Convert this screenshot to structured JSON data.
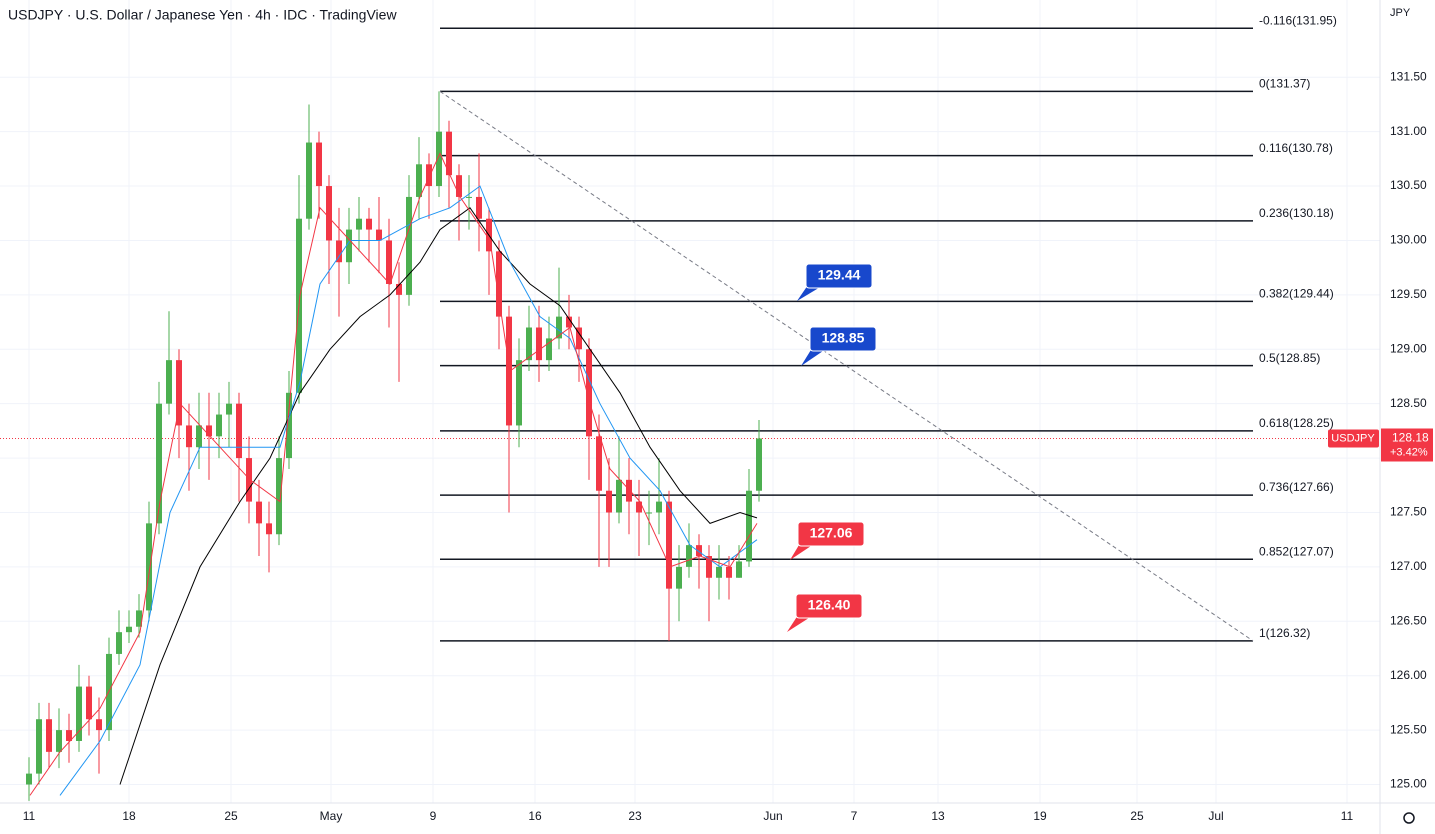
{
  "chart_data": {
    "type": "candlestick",
    "title": "USDJPY · U.S. Dollar / Japanese Yen · 4h · IDC · TradingView",
    "currency": "JPY",
    "up_color": "#4caf50",
    "down_color": "#f23645",
    "x": [
      0,
      3,
      6,
      9,
      12,
      15,
      18,
      21,
      24,
      27,
      30,
      33,
      36,
      39,
      42,
      45,
      48,
      51,
      54,
      57,
      60,
      63,
      66,
      69,
      72,
      75,
      78,
      81,
      84,
      87,
      90,
      93,
      96,
      99,
      102,
      105,
      108,
      111,
      114,
      117,
      120,
      123,
      126,
      129,
      132,
      135,
      138,
      141,
      144,
      147,
      150,
      153,
      156,
      159,
      162,
      165,
      168,
      171,
      174,
      177,
      180,
      183,
      186,
      189,
      192,
      195,
      198,
      201,
      204,
      207,
      210,
      213,
      216,
      219
    ],
    "open": [
      125.0,
      125.1,
      125.6,
      125.3,
      125.5,
      125.4,
      125.9,
      125.6,
      125.5,
      126.2,
      126.4,
      126.45,
      126.6,
      127.4,
      128.5,
      128.9,
      128.3,
      128.1,
      128.3,
      128.2,
      128.4,
      128.5,
      128.0,
      127.6,
      127.4,
      127.3,
      128.0,
      128.6,
      130.2,
      130.9,
      130.5,
      130.0,
      129.8,
      130.1,
      130.2,
      130.1,
      130.0,
      129.6,
      129.5,
      130.4,
      130.7,
      130.5,
      131.0,
      130.6,
      130.4,
      130.4,
      130.2,
      129.9,
      129.3,
      128.3,
      128.9,
      129.2,
      128.9,
      129.1,
      129.3,
      129.2,
      129.0,
      128.2,
      127.7,
      127.5,
      127.8,
      127.6,
      127.5,
      127.5,
      127.6,
      126.8,
      127.0,
      127.2,
      127.1,
      126.9,
      127.0,
      126.9,
      127.05,
      127.7
    ],
    "high": [
      125.25,
      125.75,
      125.75,
      125.7,
      125.65,
      126.1,
      126.0,
      125.8,
      126.35,
      126.6,
      126.6,
      126.75,
      127.6,
      128.7,
      129.35,
      129.0,
      128.5,
      128.6,
      128.6,
      128.6,
      128.7,
      128.6,
      128.2,
      127.8,
      127.6,
      128.2,
      128.8,
      130.6,
      131.25,
      131.0,
      130.6,
      130.3,
      130.3,
      130.4,
      130.3,
      130.4,
      130.2,
      129.8,
      130.6,
      130.95,
      130.8,
      131.37,
      131.1,
      130.7,
      130.6,
      130.8,
      130.3,
      130.0,
      129.4,
      129.1,
      129.4,
      129.4,
      129.3,
      129.75,
      129.5,
      129.3,
      129.1,
      128.4,
      128.0,
      128.2,
      128.0,
      127.8,
      127.7,
      128.0,
      127.7,
      127.2,
      127.4,
      127.3,
      127.2,
      127.2,
      127.1,
      127.2,
      127.9,
      128.35
    ],
    "low": [
      124.85,
      125.0,
      125.15,
      125.15,
      125.2,
      125.3,
      125.45,
      125.1,
      125.4,
      126.1,
      126.3,
      126.35,
      126.5,
      127.3,
      128.4,
      128.0,
      127.7,
      127.9,
      127.8,
      128.0,
      128.1,
      127.6,
      127.4,
      127.1,
      126.95,
      127.2,
      127.9,
      128.5,
      130.1,
      130.2,
      129.6,
      129.3,
      129.6,
      129.9,
      129.8,
      129.7,
      129.2,
      128.7,
      129.4,
      130.2,
      130.2,
      130.4,
      130.3,
      130.0,
      130.1,
      129.9,
      129.5,
      129.0,
      127.5,
      128.1,
      128.8,
      128.7,
      128.8,
      129.0,
      129.0,
      128.7,
      127.8,
      127.0,
      127.0,
      127.4,
      127.3,
      127.1,
      127.2,
      127.3,
      126.32,
      126.5,
      126.9,
      126.8,
      126.5,
      126.7,
      126.7,
      126.9,
      127.0,
      127.6
    ],
    "close": [
      125.1,
      125.6,
      125.3,
      125.5,
      125.4,
      125.9,
      125.6,
      125.5,
      126.2,
      126.4,
      126.45,
      126.6,
      127.4,
      128.5,
      128.9,
      128.3,
      128.1,
      128.3,
      128.2,
      128.4,
      128.5,
      128.0,
      127.6,
      127.4,
      127.3,
      128.0,
      128.6,
      130.2,
      130.9,
      130.5,
      130.0,
      129.8,
      130.1,
      130.2,
      130.1,
      130.0,
      129.6,
      129.5,
      130.4,
      130.7,
      130.5,
      131.0,
      130.6,
      130.4,
      130.4,
      130.2,
      129.9,
      129.3,
      128.3,
      128.9,
      129.2,
      128.9,
      129.1,
      129.3,
      129.2,
      129.0,
      128.2,
      127.7,
      127.5,
      127.8,
      127.6,
      127.5,
      127.5,
      127.6,
      126.8,
      127.0,
      127.2,
      127.1,
      126.9,
      127.0,
      126.9,
      127.05,
      127.7,
      128.18
    ],
    "moving_averages": [
      {
        "color": "#000000",
        "x": [
          27.3,
          39.3,
          51.3,
          63.3,
          72.3,
          81.3,
          90.3,
          99.3,
          108.3,
          117.3,
          123.3,
          132.3,
          141.3,
          150.3,
          159.3,
          168.3,
          177.3,
          186.3,
          195.3,
          204.3,
          213.3,
          218.4
        ],
        "values": [
          125.0,
          126.1,
          127.0,
          127.6,
          128.0,
          128.6,
          129.0,
          129.3,
          129.5,
          129.8,
          130.1,
          130.3,
          129.9,
          129.6,
          129.4,
          129.0,
          128.6,
          128.1,
          127.7,
          127.4,
          127.5,
          127.45
        ]
      },
      {
        "color": "#2196f3",
        "x": [
          9.3,
          21.3,
          33.3,
          42.3,
          51.3,
          63.3,
          75.3,
          81.3,
          87.3,
          96.3,
          105.3,
          117.3,
          126.3,
          135.3,
          144.3,
          153.3,
          162.3,
          171.3,
          180.3,
          189.3,
          198.3,
          207.3,
          218.4
        ],
        "values": [
          124.9,
          125.4,
          126.1,
          127.5,
          128.1,
          128.1,
          128.1,
          128.7,
          129.6,
          130.0,
          130.0,
          130.2,
          130.3,
          130.5,
          129.8,
          129.3,
          129.1,
          128.5,
          128.0,
          127.7,
          127.2,
          127.0,
          127.25
        ]
      },
      {
        "color": "#f23645",
        "x": [
          0.3,
          9.3,
          21.3,
          33.3,
          39.3,
          45.3,
          54.3,
          66.3,
          75.3,
          81.3,
          87.3,
          96.3,
          108.3,
          117.3,
          123.3,
          129.3,
          138.3,
          144.3,
          153.3,
          162.3,
          168.3,
          174.3,
          183.3,
          192.3,
          201.3,
          210.3,
          218.4
        ],
        "values": [
          124.9,
          125.3,
          125.7,
          126.4,
          127.6,
          128.5,
          128.2,
          127.8,
          127.6,
          129.5,
          130.3,
          130.0,
          129.6,
          130.4,
          130.8,
          130.4,
          130.0,
          128.8,
          129.0,
          129.2,
          128.5,
          127.9,
          127.6,
          127.0,
          127.1,
          127.0,
          127.4
        ]
      }
    ],
    "fib": {
      "x_range": [
        123.3,
        367.2
      ],
      "levels": [
        {
          "value": 131.95,
          "label": "-0.116(131.95)"
        },
        {
          "value": 131.37,
          "label": "0(131.37)"
        },
        {
          "value": 130.78,
          "label": "0.116(130.78)"
        },
        {
          "value": 130.18,
          "label": "0.236(130.18)"
        },
        {
          "value": 129.44,
          "label": "0.382(129.44)"
        },
        {
          "value": 128.85,
          "label": "0.5(128.85)"
        },
        {
          "value": 128.25,
          "label": "0.618(128.25)"
        },
        {
          "value": 127.66,
          "label": "0.736(127.66)"
        },
        {
          "value": 127.07,
          "label": "0.852(127.07)"
        },
        {
          "value": 126.32,
          "label": "1(126.32)"
        }
      ]
    },
    "callouts": [
      {
        "text": "129.44",
        "color": "#1848cc"
      },
      {
        "text": "128.85",
        "color": "#1848cc"
      },
      {
        "text": "127.06",
        "color": "#f23645"
      },
      {
        "text": "126.40",
        "color": "#f23645"
      }
    ],
    "last_price": {
      "value": 128.18,
      "symbol": "USDJPY",
      "change": "+3.42%",
      "color": "#f23645"
    },
    "xlim": [
      -8.7,
      405.3
    ],
    "xticks": [
      {
        "value": 0,
        "label": "11"
      },
      {
        "value": 30,
        "label": "18"
      },
      {
        "value": 60.6,
        "label": "25"
      },
      {
        "value": 90.6,
        "label": "May"
      },
      {
        "value": 121.2,
        "label": "9"
      },
      {
        "value": 151.8,
        "label": "16"
      },
      {
        "value": 181.8,
        "label": "23"
      },
      {
        "value": 223.2,
        "label": "Jun"
      },
      {
        "value": 247.5,
        "label": "7"
      },
      {
        "value": 272.7,
        "label": "13"
      },
      {
        "value": 303.3,
        "label": "19"
      },
      {
        "value": 332.4,
        "label": "25"
      },
      {
        "value": 356.1,
        "label": "Jul"
      },
      {
        "value": 395.4,
        "label": "11"
      }
    ],
    "ylim": [
      124.83,
      132.21
    ],
    "yticks": [
      {
        "value": 125,
        "label": "125.00"
      },
      {
        "value": 125.5,
        "label": "125.50"
      },
      {
        "value": 126,
        "label": "126.00"
      },
      {
        "value": 126.5,
        "label": "126.50"
      },
      {
        "value": 127,
        "label": "127.00"
      },
      {
        "value": 127.5,
        "label": "127.50"
      },
      {
        "value": 128,
        "label": "128.00"
      },
      {
        "value": 128.5,
        "label": "128.50"
      },
      {
        "value": 129,
        "label": "129.00"
      },
      {
        "value": 129.5,
        "label": "129.50"
      },
      {
        "value": 130,
        "label": "130.00"
      },
      {
        "value": 130.5,
        "label": "130.50"
      },
      {
        "value": 131,
        "label": "131.00"
      },
      {
        "value": 131.5,
        "label": "131.50"
      }
    ],
    "grid": true
  }
}
